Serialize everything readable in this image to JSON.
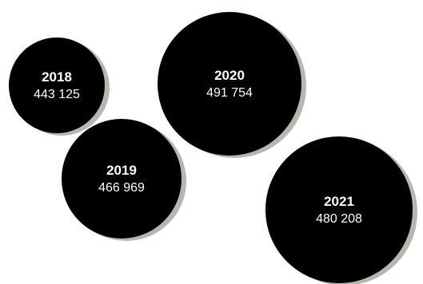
{
  "chart_data": {
    "type": "bubble",
    "title": "",
    "items": [
      {
        "year": "2018",
        "value": 443125,
        "label": "443 125"
      },
      {
        "year": "2019",
        "value": 466969,
        "label": "466 969"
      },
      {
        "year": "2020",
        "value": 491754,
        "label": "491 754"
      },
      {
        "year": "2021",
        "value": 480208,
        "label": "480 208"
      }
    ],
    "colors": {
      "bubble_fill": "#000000",
      "bubble_shadow": "#b7b7b0",
      "text": "#ffffff",
      "background": "#ffffff"
    }
  }
}
